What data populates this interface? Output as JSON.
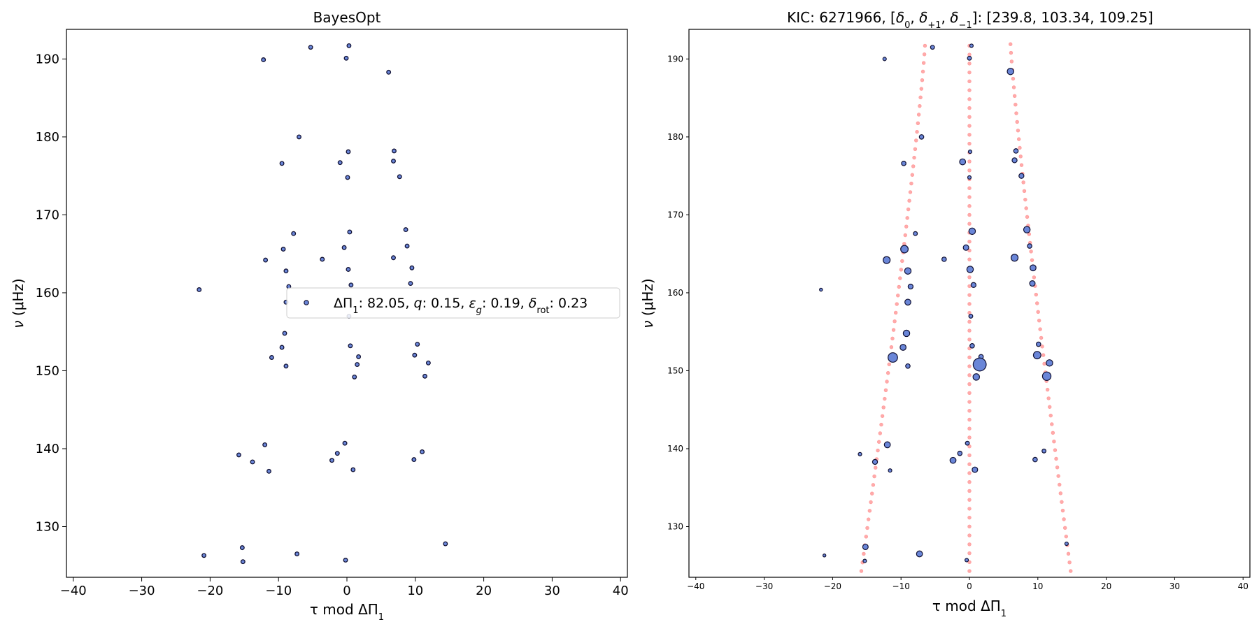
{
  "chart_data": [
    {
      "type": "scatter",
      "title": "BayesOpt",
      "xlabel": "τ mod ΔΠ₁",
      "ylabel": "ν (μHz)",
      "xlim": [
        -41,
        41
      ],
      "ylim": [
        123.5,
        193.8
      ],
      "xticks": [
        "−40",
        "−30",
        "−20",
        "−10",
        "0",
        "10",
        "20",
        "30",
        "40"
      ],
      "yticks": [
        "130",
        "140",
        "150",
        "160",
        "170",
        "180",
        "190"
      ],
      "grid": false,
      "legend": {
        "placement": "right",
        "label": "ΔΠ₁: 82.05, q: 0.15, εg: 0.19, δrot: 0.23",
        "label_parts": [
          "ΔΠ",
          "1",
          ": 82.05, ",
          "q",
          ": 0.15, ",
          "ε",
          "g",
          ": 0.19, ",
          "δ",
          "rot",
          ": 0.23"
        ]
      },
      "marker_color": "#6a86d8",
      "edge_color": "#111133",
      "points": [
        {
          "x": -12.2,
          "y": 189.9
        },
        {
          "x": -5.3,
          "y": 191.5
        },
        {
          "x": 0.3,
          "y": 191.7
        },
        {
          "x": -0.1,
          "y": 190.1
        },
        {
          "x": 6.1,
          "y": 188.3
        },
        {
          "x": -7.0,
          "y": 180.0
        },
        {
          "x": 0.2,
          "y": 178.1
        },
        {
          "x": 6.9,
          "y": 178.2
        },
        {
          "x": -9.5,
          "y": 176.6
        },
        {
          "x": -1.0,
          "y": 176.7
        },
        {
          "x": 6.8,
          "y": 176.9
        },
        {
          "x": 0.1,
          "y": 174.8
        },
        {
          "x": 7.7,
          "y": 174.9
        },
        {
          "x": -7.8,
          "y": 167.6
        },
        {
          "x": 0.4,
          "y": 167.8
        },
        {
          "x": 8.6,
          "y": 168.1
        },
        {
          "x": -9.3,
          "y": 165.6
        },
        {
          "x": -0.4,
          "y": 165.8
        },
        {
          "x": 8.8,
          "y": 166.0
        },
        {
          "x": -11.9,
          "y": 164.2
        },
        {
          "x": -3.6,
          "y": 164.3
        },
        {
          "x": 6.8,
          "y": 164.5
        },
        {
          "x": -8.9,
          "y": 162.8
        },
        {
          "x": 0.2,
          "y": 163.0
        },
        {
          "x": 9.5,
          "y": 163.2
        },
        {
          "x": -21.6,
          "y": 160.4
        },
        {
          "x": -8.5,
          "y": 160.8
        },
        {
          "x": 0.6,
          "y": 161.0
        },
        {
          "x": 9.3,
          "y": 161.2
        },
        {
          "x": -8.9,
          "y": 158.8
        },
        {
          "x": 0.3,
          "y": 157.0
        },
        {
          "x": -9.1,
          "y": 154.8
        },
        {
          "x": -9.5,
          "y": 153.0
        },
        {
          "x": 0.5,
          "y": 153.2
        },
        {
          "x": 10.3,
          "y": 153.4
        },
        {
          "x": -11.0,
          "y": 151.7
        },
        {
          "x": 1.7,
          "y": 151.8
        },
        {
          "x": 9.9,
          "y": 152.0
        },
        {
          "x": -8.9,
          "y": 150.6
        },
        {
          "x": 1.5,
          "y": 150.8
        },
        {
          "x": 11.9,
          "y": 151.0
        },
        {
          "x": 1.1,
          "y": 149.2
        },
        {
          "x": 11.4,
          "y": 149.3
        },
        {
          "x": -15.8,
          "y": 139.2
        },
        {
          "x": -12.0,
          "y": 140.5
        },
        {
          "x": -1.4,
          "y": 139.4
        },
        {
          "x": -0.3,
          "y": 140.7
        },
        {
          "x": 11.0,
          "y": 139.6
        },
        {
          "x": -13.8,
          "y": 138.3
        },
        {
          "x": -2.2,
          "y": 138.5
        },
        {
          "x": 9.8,
          "y": 138.6
        },
        {
          "x": -11.4,
          "y": 137.1
        },
        {
          "x": 0.9,
          "y": 137.3
        },
        {
          "x": -20.9,
          "y": 126.3
        },
        {
          "x": -15.3,
          "y": 127.3
        },
        {
          "x": -7.3,
          "y": 126.5
        },
        {
          "x": -15.2,
          "y": 125.5
        },
        {
          "x": -0.2,
          "y": 125.7
        },
        {
          "x": 14.4,
          "y": 127.8
        }
      ]
    },
    {
      "type": "scatter",
      "title": "KIC: 6271966, [δ₀, δ₊₁, δ₋₁]: [239.8, 103.34, 109.25]",
      "title_parts": [
        "KIC: 6271966, [",
        "δ",
        "0",
        ", ",
        "δ",
        "+1",
        ", ",
        "δ",
        "−1",
        "]: [239.8, 103.34, 109.25]"
      ],
      "xlabel": "τ mod ΔΠ₁",
      "ylabel": "ν (μHz)",
      "xlim": [
        -41,
        41
      ],
      "ylim": [
        123.5,
        193.8
      ],
      "xticks": [
        "−40",
        "−30",
        "−20",
        "−10",
        "0",
        "10",
        "20",
        "30",
        "40"
      ],
      "yticks": [
        "130",
        "140",
        "150",
        "160",
        "170",
        "180",
        "190"
      ],
      "grid": false,
      "observed_color": "#6a86d8",
      "model_color": "#ffaaaa",
      "observed": [
        {
          "x": -12.4,
          "y": 190.0,
          "s": 0.3
        },
        {
          "x": -5.4,
          "y": 191.5,
          "s": 0.4
        },
        {
          "x": 0.0,
          "y": 190.1,
          "s": 0.4
        },
        {
          "x": 0.3,
          "y": 191.7,
          "s": 0.3
        },
        {
          "x": 6.0,
          "y": 188.4,
          "s": 0.9
        },
        {
          "x": -7.0,
          "y": 180.0,
          "s": 0.5
        },
        {
          "x": 0.1,
          "y": 178.1,
          "s": 0.3
        },
        {
          "x": 6.8,
          "y": 178.2,
          "s": 0.5
        },
        {
          "x": -9.6,
          "y": 176.6,
          "s": 0.5
        },
        {
          "x": -1.0,
          "y": 176.8,
          "s": 0.8
        },
        {
          "x": 6.6,
          "y": 177.0,
          "s": 0.6
        },
        {
          "x": 0.0,
          "y": 174.8,
          "s": 0.3
        },
        {
          "x": 7.6,
          "y": 175.0,
          "s": 0.6
        },
        {
          "x": -7.9,
          "y": 167.6,
          "s": 0.4
        },
        {
          "x": 0.4,
          "y": 167.9,
          "s": 0.9
        },
        {
          "x": 8.4,
          "y": 168.1,
          "s": 0.9
        },
        {
          "x": -9.5,
          "y": 165.6,
          "s": 1.1
        },
        {
          "x": -0.5,
          "y": 165.8,
          "s": 0.7
        },
        {
          "x": 8.8,
          "y": 166.0,
          "s": 0.5
        },
        {
          "x": -12.1,
          "y": 164.2,
          "s": 1.0
        },
        {
          "x": -3.7,
          "y": 164.3,
          "s": 0.5
        },
        {
          "x": 6.6,
          "y": 164.5,
          "s": 1.0
        },
        {
          "x": -9.0,
          "y": 162.8,
          "s": 0.9
        },
        {
          "x": 0.1,
          "y": 163.0,
          "s": 0.9
        },
        {
          "x": 9.3,
          "y": 163.2,
          "s": 0.8
        },
        {
          "x": -21.7,
          "y": 160.4,
          "s": 0.2
        },
        {
          "x": -8.6,
          "y": 160.8,
          "s": 0.6
        },
        {
          "x": 0.6,
          "y": 161.0,
          "s": 0.6
        },
        {
          "x": 9.2,
          "y": 161.2,
          "s": 0.7
        },
        {
          "x": -9.0,
          "y": 158.8,
          "s": 0.8
        },
        {
          "x": 0.2,
          "y": 157.0,
          "s": 0.4
        },
        {
          "x": -9.2,
          "y": 154.8,
          "s": 0.9
        },
        {
          "x": -9.7,
          "y": 153.0,
          "s": 0.8
        },
        {
          "x": 0.4,
          "y": 153.2,
          "s": 0.5
        },
        {
          "x": 10.1,
          "y": 153.4,
          "s": 0.5
        },
        {
          "x": -11.2,
          "y": 151.7,
          "s": 1.5
        },
        {
          "x": 1.7,
          "y": 151.8,
          "s": 0.5
        },
        {
          "x": 9.9,
          "y": 152.0,
          "s": 1.1
        },
        {
          "x": -9.0,
          "y": 150.6,
          "s": 0.5
        },
        {
          "x": 1.5,
          "y": 150.8,
          "s": 2.2
        },
        {
          "x": 11.7,
          "y": 151.0,
          "s": 0.9
        },
        {
          "x": 1.0,
          "y": 149.2,
          "s": 0.9
        },
        {
          "x": 11.3,
          "y": 149.3,
          "s": 1.3
        },
        {
          "x": -16.0,
          "y": 139.3,
          "s": 0.3
        },
        {
          "x": -12.0,
          "y": 140.5,
          "s": 0.8
        },
        {
          "x": -1.4,
          "y": 139.4,
          "s": 0.5
        },
        {
          "x": -0.3,
          "y": 140.7,
          "s": 0.4
        },
        {
          "x": 10.9,
          "y": 139.7,
          "s": 0.4
        },
        {
          "x": -13.8,
          "y": 138.3,
          "s": 0.6
        },
        {
          "x": -2.4,
          "y": 138.5,
          "s": 0.8
        },
        {
          "x": 9.6,
          "y": 138.6,
          "s": 0.5
        },
        {
          "x": -11.6,
          "y": 137.2,
          "s": 0.3
        },
        {
          "x": 0.8,
          "y": 137.3,
          "s": 0.7
        },
        {
          "x": -21.2,
          "y": 126.3,
          "s": 0.2
        },
        {
          "x": -15.2,
          "y": 127.4,
          "s": 0.7
        },
        {
          "x": -7.3,
          "y": 126.5,
          "s": 0.8
        },
        {
          "x": -15.3,
          "y": 125.6,
          "s": 0.3
        },
        {
          "x": -0.4,
          "y": 125.7,
          "s": 0.3
        },
        {
          "x": 14.2,
          "y": 127.8,
          "s": 0.3
        }
      ],
      "model_tracks": [
        {
          "x_top": -6.5,
          "x_bottom": -15.8,
          "y_top": 191.7,
          "y_bottom": 124.3,
          "n": 62
        },
        {
          "x_top": 0.0,
          "x_bottom": 0.0,
          "y_top": 191.7,
          "y_bottom": 124.3,
          "n": 60
        },
        {
          "x_top": 6.0,
          "x_bottom": 14.8,
          "y_top": 191.9,
          "y_bottom": 124.3,
          "n": 62
        }
      ]
    }
  ]
}
